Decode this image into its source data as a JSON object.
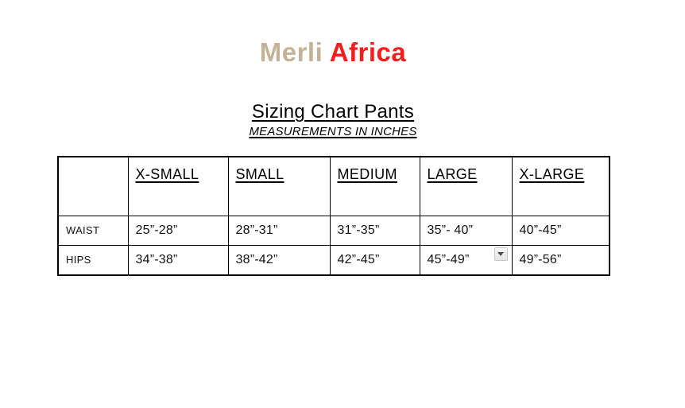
{
  "logo": {
    "brand_primary": "Merli",
    "brand_secondary": "Africa",
    "primary_color": "#c3b295",
    "secondary_color": "#f21d1d"
  },
  "heading": {
    "title": "Sizing Chart Pants",
    "subtitle": "MEASUREMENTS IN INCHES"
  },
  "size_table": {
    "columns": [
      "",
      "X-SMALL",
      "SMALL",
      "MEDIUM",
      "LARGE",
      "X-LARGE"
    ],
    "rows": [
      {
        "label": "WAIST",
        "values": [
          "25”-28”",
          "28”-31”",
          "31”-35”",
          "35”- 40”",
          "40”-45”"
        ]
      },
      {
        "label": "HIPS",
        "values": [
          "34”-38”",
          "38”-42”",
          "42”-45”",
          "45”-49”",
          "49”-56”"
        ]
      }
    ],
    "dropdown": {
      "icon": "chevron-down-icon",
      "location": "HIPS / LARGE cell"
    },
    "border_color": "#000000"
  }
}
